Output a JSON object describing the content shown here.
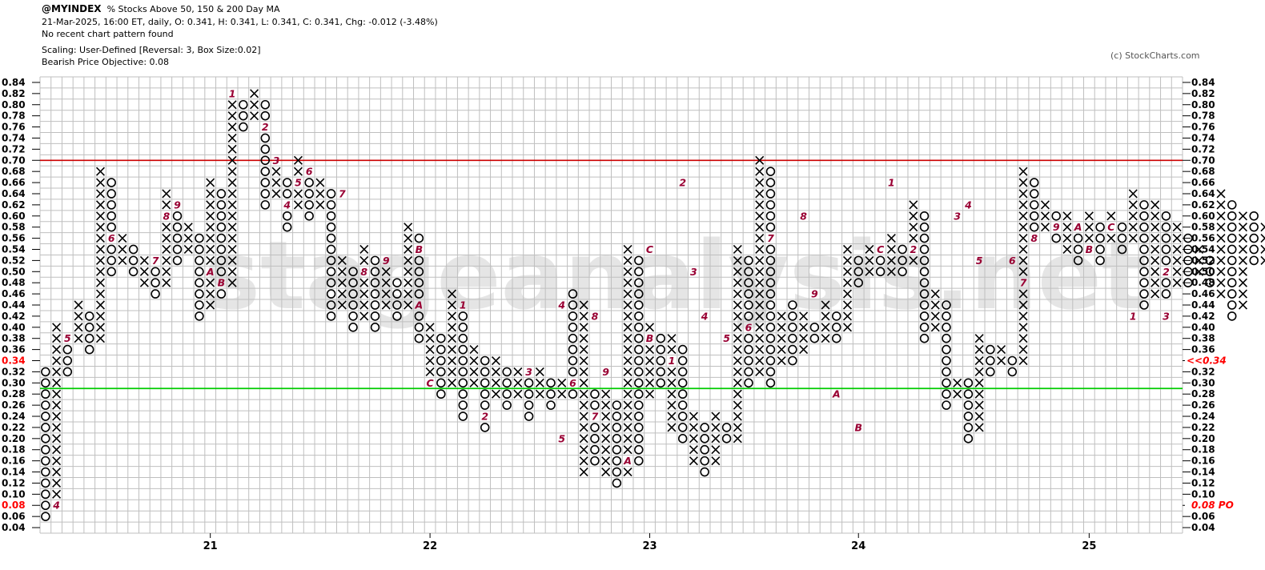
{
  "header": {
    "symbol": "@MYINDEX",
    "description": "% Stocks Above 50, 150 & 200 Day MA",
    "quote_line": "21-Mar-2025, 16:00 ET, daily, O: 0.341, H: 0.341, L: 0.341, C: 0.341, Chg: -0.012 (-3.48%)",
    "pattern_line": "No recent chart pattern found",
    "scaling_line": "Scaling: User-Defined [Reversal: 3, Box Size:0.02]",
    "objective_line": "Bearish Price Objective: 0.08"
  },
  "copyright": "(c) StockCharts.com",
  "watermark": "stageanalysis.net",
  "colors": {
    "grid": "#bfbfbf",
    "x_mark": "#000000",
    "o_mark": "#000000",
    "month_marker": "#990033",
    "resistance_line": "#cc0000",
    "support_line": "#00cc00",
    "price_label": "#ff0000",
    "watermark": "#d0d0d0"
  },
  "chart_data": {
    "type": "point-and-figure",
    "box_size": 0.02,
    "reversal": 3,
    "y_range": [
      0.04,
      0.84
    ],
    "y_ticks": [
      "0.04",
      "0.06",
      "0.08",
      "0.10",
      "0.12",
      "0.14",
      "0.16",
      "0.18",
      "0.20",
      "0.22",
      "0.24",
      "0.26",
      "0.28",
      "0.30",
      "0.32",
      "0.34",
      "0.36",
      "0.38",
      "0.40",
      "0.42",
      "0.44",
      "0.46",
      "0.48",
      "0.50",
      "0.52",
      "0.54",
      "0.56",
      "0.58",
      "0.60",
      "0.62",
      "0.64",
      "0.66",
      "0.68",
      "0.70",
      "0.72",
      "0.74",
      "0.76",
      "0.78",
      "0.80",
      "0.82",
      "0.84"
    ],
    "x_labels": [
      {
        "label": "21",
        "column": 15
      },
      {
        "label": "22",
        "column": 35
      },
      {
        "label": "23",
        "column": 55
      },
      {
        "label": "24",
        "column": 74
      },
      {
        "label": "25",
        "column": 95
      }
    ],
    "current_price_label": "0.34",
    "current_price_tag": "<<0.34",
    "objective_label": "0.08",
    "objective_tag": "0.08 PO",
    "resistance_level": 0.7,
    "support_level": 0.29,
    "columns": [
      {
        "t": "O",
        "hi": 0.32,
        "lo": 0.06
      },
      {
        "t": "X",
        "hi": 0.4,
        "lo": 0.08
      },
      {
        "t": "O",
        "hi": 0.36,
        "lo": 0.32
      },
      {
        "t": "X",
        "hi": 0.44,
        "lo": 0.38
      },
      {
        "t": "O",
        "hi": 0.42,
        "lo": 0.36
      },
      {
        "t": "X",
        "hi": 0.68,
        "lo": 0.38
      },
      {
        "t": "O",
        "hi": 0.66,
        "lo": 0.5
      },
      {
        "t": "X",
        "hi": 0.56,
        "lo": 0.52
      },
      {
        "t": "O",
        "hi": 0.54,
        "lo": 0.5
      },
      {
        "t": "X",
        "hi": 0.52,
        "lo": 0.48
      },
      {
        "t": "O",
        "hi": 0.5,
        "lo": 0.46
      },
      {
        "t": "X",
        "hi": 0.64,
        "lo": 0.48
      },
      {
        "t": "O",
        "hi": 0.62,
        "lo": 0.52
      },
      {
        "t": "X",
        "hi": 0.58,
        "lo": 0.54
      },
      {
        "t": "O",
        "hi": 0.56,
        "lo": 0.42
      },
      {
        "t": "X",
        "hi": 0.66,
        "lo": 0.44
      },
      {
        "t": "O",
        "hi": 0.64,
        "lo": 0.46
      },
      {
        "t": "X",
        "hi": 0.82,
        "lo": 0.48
      },
      {
        "t": "O",
        "hi": 0.8,
        "lo": 0.76
      },
      {
        "t": "X",
        "hi": 0.82,
        "lo": 0.78
      },
      {
        "t": "O",
        "hi": 0.8,
        "lo": 0.62
      },
      {
        "t": "X",
        "hi": 0.68,
        "lo": 0.64
      },
      {
        "t": "O",
        "hi": 0.66,
        "lo": 0.58
      },
      {
        "t": "X",
        "hi": 0.7,
        "lo": 0.62
      },
      {
        "t": "O",
        "hi": 0.68,
        "lo": 0.6
      },
      {
        "t": "X",
        "hi": 0.66,
        "lo": 0.62
      },
      {
        "t": "O",
        "hi": 0.64,
        "lo": 0.42
      },
      {
        "t": "X",
        "hi": 0.52,
        "lo": 0.44
      },
      {
        "t": "O",
        "hi": 0.5,
        "lo": 0.4
      },
      {
        "t": "X",
        "hi": 0.54,
        "lo": 0.42
      },
      {
        "t": "O",
        "hi": 0.52,
        "lo": 0.4
      },
      {
        "t": "X",
        "hi": 0.5,
        "lo": 0.44
      },
      {
        "t": "O",
        "hi": 0.48,
        "lo": 0.42
      },
      {
        "t": "X",
        "hi": 0.58,
        "lo": 0.44
      },
      {
        "t": "O",
        "hi": 0.56,
        "lo": 0.38
      },
      {
        "t": "X",
        "hi": 0.4,
        "lo": 0.3
      },
      {
        "t": "O",
        "hi": 0.38,
        "lo": 0.28
      },
      {
        "t": "X",
        "hi": 0.46,
        "lo": 0.3
      },
      {
        "t": "O",
        "hi": 0.44,
        "lo": 0.24
      },
      {
        "t": "X",
        "hi": 0.36,
        "lo": 0.3
      },
      {
        "t": "O",
        "hi": 0.34,
        "lo": 0.22
      },
      {
        "t": "X",
        "hi": 0.34,
        "lo": 0.28
      },
      {
        "t": "O",
        "hi": 0.32,
        "lo": 0.26
      },
      {
        "t": "X",
        "hi": 0.32,
        "lo": 0.28
      },
      {
        "t": "O",
        "hi": 0.32,
        "lo": 0.24
      },
      {
        "t": "X",
        "hi": 0.32,
        "lo": 0.28
      },
      {
        "t": "O",
        "hi": 0.3,
        "lo": 0.26
      },
      {
        "t": "X",
        "hi": 0.3,
        "lo": 0.28
      },
      {
        "t": "O",
        "hi": 0.46,
        "lo": 0.28
      },
      {
        "t": "X",
        "hi": 0.44,
        "lo": 0.14
      },
      {
        "t": "O",
        "hi": 0.28,
        "lo": 0.16
      },
      {
        "t": "X",
        "hi": 0.28,
        "lo": 0.14
      },
      {
        "t": "O",
        "hi": 0.26,
        "lo": 0.12
      },
      {
        "t": "X",
        "hi": 0.54,
        "lo": 0.14
      },
      {
        "t": "O",
        "hi": 0.52,
        "lo": 0.16
      },
      {
        "t": "X",
        "hi": 0.4,
        "lo": 0.28
      },
      {
        "t": "O",
        "hi": 0.38,
        "lo": 0.3
      },
      {
        "t": "X",
        "hi": 0.38,
        "lo": 0.22
      },
      {
        "t": "O",
        "hi": 0.36,
        "lo": 0.2
      },
      {
        "t": "X",
        "hi": 0.24,
        "lo": 0.16
      },
      {
        "t": "O",
        "hi": 0.22,
        "lo": 0.14
      },
      {
        "t": "X",
        "hi": 0.24,
        "lo": 0.16
      },
      {
        "t": "O",
        "hi": 0.22,
        "lo": 0.2
      },
      {
        "t": "X",
        "hi": 0.54,
        "lo": 0.2
      },
      {
        "t": "O",
        "hi": 0.52,
        "lo": 0.3
      },
      {
        "t": "X",
        "hi": 0.7,
        "lo": 0.32
      },
      {
        "t": "O",
        "hi": 0.68,
        "lo": 0.3
      },
      {
        "t": "X",
        "hi": 0.42,
        "lo": 0.34
      },
      {
        "t": "O",
        "hi": 0.44,
        "lo": 0.34
      },
      {
        "t": "X",
        "hi": 0.42,
        "lo": 0.36
      },
      {
        "t": "O",
        "hi": 0.4,
        "lo": 0.38
      },
      {
        "t": "X",
        "hi": 0.44,
        "lo": 0.38
      },
      {
        "t": "O",
        "hi": 0.42,
        "lo": 0.38
      },
      {
        "t": "X",
        "hi": 0.54,
        "lo": 0.4
      },
      {
        "t": "O",
        "hi": 0.52,
        "lo": 0.48
      },
      {
        "t": "X",
        "hi": 0.54,
        "lo": 0.5
      },
      {
        "t": "O",
        "hi": 0.52,
        "lo": 0.5
      },
      {
        "t": "X",
        "hi": 0.56,
        "lo": 0.5
      },
      {
        "t": "O",
        "hi": 0.54,
        "lo": 0.5
      },
      {
        "t": "X",
        "hi": 0.62,
        "lo": 0.52
      },
      {
        "t": "O",
        "hi": 0.6,
        "lo": 0.38
      },
      {
        "t": "X",
        "hi": 0.46,
        "lo": 0.4
      },
      {
        "t": "O",
        "hi": 0.44,
        "lo": 0.26
      },
      {
        "t": "X",
        "hi": 0.3,
        "lo": 0.28
      },
      {
        "t": "O",
        "hi": 0.3,
        "lo": 0.2
      },
      {
        "t": "X",
        "hi": 0.38,
        "lo": 0.22
      },
      {
        "t": "O",
        "hi": 0.36,
        "lo": 0.32
      },
      {
        "t": "X",
        "hi": 0.36,
        "lo": 0.34
      },
      {
        "t": "O",
        "hi": 0.34,
        "lo": 0.32
      },
      {
        "t": "X",
        "hi": 0.68,
        "lo": 0.34
      },
      {
        "t": "O",
        "hi": 0.66,
        "lo": 0.58
      },
      {
        "t": "X",
        "hi": 0.62,
        "lo": 0.58
      },
      {
        "t": "O",
        "hi": 0.6,
        "lo": 0.56
      },
      {
        "t": "X",
        "hi": 0.6,
        "lo": 0.54
      },
      {
        "t": "O",
        "hi": 0.58,
        "lo": 0.52
      },
      {
        "t": "X",
        "hi": 0.6,
        "lo": 0.54
      },
      {
        "t": "O",
        "hi": 0.58,
        "lo": 0.52
      },
      {
        "t": "X",
        "hi": 0.6,
        "lo": 0.56
      },
      {
        "t": "O",
        "hi": 0.58,
        "lo": 0.54
      },
      {
        "t": "X",
        "hi": 0.64,
        "lo": 0.56
      },
      {
        "t": "O",
        "hi": 0.62,
        "lo": 0.44
      },
      {
        "t": "X",
        "hi": 0.62,
        "lo": 0.46
      },
      {
        "t": "O",
        "hi": 0.6,
        "lo": 0.46
      },
      {
        "t": "X",
        "hi": 0.58,
        "lo": 0.48
      },
      {
        "t": "O",
        "hi": 0.56,
        "lo": 0.48
      },
      {
        "t": "X",
        "hi": 0.54,
        "lo": 0.5
      },
      {
        "t": "O",
        "hi": 0.52,
        "lo": 0.48
      },
      {
        "t": "X",
        "hi": 0.64,
        "lo": 0.46
      },
      {
        "t": "O",
        "hi": 0.62,
        "lo": 0.42
      },
      {
        "t": "X",
        "hi": 0.6,
        "lo": 0.44
      },
      {
        "t": "O",
        "hi": 0.6,
        "lo": 0.52
      },
      {
        "t": "X",
        "hi": 0.58,
        "lo": 0.52
      },
      {
        "t": "O",
        "hi": 0.6,
        "lo": 0.52
      },
      {
        "t": "X",
        "hi": 0.6,
        "lo": 0.54
      },
      {
        "t": "O",
        "hi": 0.58,
        "lo": 0.52
      },
      {
        "t": "X",
        "hi": 0.6,
        "lo": 0.54
      },
      {
        "t": "O",
        "hi": 0.58,
        "lo": 0.54
      },
      {
        "t": "X",
        "hi": 0.6,
        "lo": 0.56
      },
      {
        "t": "O",
        "hi": 0.58,
        "lo": 0.4
      },
      {
        "t": "X",
        "hi": 0.46,
        "lo": 0.42
      },
      {
        "t": "O",
        "hi": 0.44,
        "lo": 0.4
      },
      {
        "t": "X",
        "hi": 0.44,
        "lo": 0.4
      },
      {
        "t": "O",
        "hi": 0.42,
        "lo": 0.38
      },
      {
        "t": "X",
        "hi": 0.52,
        "lo": 0.4
      },
      {
        "t": "O",
        "hi": 0.5,
        "lo": 0.3
      },
      {
        "t": "X",
        "hi": 0.36,
        "lo": 0.32
      }
    ],
    "month_markers": [
      {
        "label": "4",
        "column": 1,
        "value": 0.08
      },
      {
        "label": "5",
        "column": 2,
        "value": 0.38
      },
      {
        "label": "6",
        "column": 6,
        "value": 0.56
      },
      {
        "label": "7",
        "column": 10,
        "value": 0.52
      },
      {
        "label": "8",
        "column": 11,
        "value": 0.6
      },
      {
        "label": "9",
        "column": 12,
        "value": 0.62
      },
      {
        "label": "A",
        "column": 15,
        "value": 0.5
      },
      {
        "label": "B",
        "column": 16,
        "value": 0.48
      },
      {
        "label": "1",
        "column": 17,
        "value": 0.82
      },
      {
        "label": "2",
        "column": 20,
        "value": 0.76
      },
      {
        "label": "3",
        "column": 21,
        "value": 0.7
      },
      {
        "label": "4",
        "column": 22,
        "value": 0.62
      },
      {
        "label": "5",
        "column": 23,
        "value": 0.66
      },
      {
        "label": "6",
        "column": 24,
        "value": 0.68
      },
      {
        "label": "7",
        "column": 27,
        "value": 0.64
      },
      {
        "label": "8",
        "column": 29,
        "value": 0.5
      },
      {
        "label": "9",
        "column": 31,
        "value": 0.52
      },
      {
        "label": "A",
        "column": 34,
        "value": 0.44
      },
      {
        "label": "B",
        "column": 34,
        "value": 0.54
      },
      {
        "label": "C",
        "column": 35,
        "value": 0.3
      },
      {
        "label": "1",
        "column": 38,
        "value": 0.44
      },
      {
        "label": "2",
        "column": 40,
        "value": 0.24
      },
      {
        "label": "3",
        "column": 44,
        "value": 0.32
      },
      {
        "label": "4",
        "column": 47,
        "value": 0.44
      },
      {
        "label": "5",
        "column": 47,
        "value": 0.2
      },
      {
        "label": "6",
        "column": 48,
        "value": 0.3
      },
      {
        "label": "7",
        "column": 50,
        "value": 0.24
      },
      {
        "label": "8",
        "column": 50,
        "value": 0.42
      },
      {
        "label": "9",
        "column": 51,
        "value": 0.32
      },
      {
        "label": "A",
        "column": 53,
        "value": 0.16
      },
      {
        "label": "B",
        "column": 55,
        "value": 0.38
      },
      {
        "label": "C",
        "column": 55,
        "value": 0.54
      },
      {
        "label": "1",
        "column": 57,
        "value": 0.34
      },
      {
        "label": "2",
        "column": 58,
        "value": 0.66
      },
      {
        "label": "3",
        "column": 59,
        "value": 0.5
      },
      {
        "label": "4",
        "column": 60,
        "value": 0.42
      },
      {
        "label": "5",
        "column": 62,
        "value": 0.38
      },
      {
        "label": "6",
        "column": 64,
        "value": 0.4
      },
      {
        "label": "7",
        "column": 66,
        "value": 0.56
      },
      {
        "label": "8",
        "column": 69,
        "value": 0.6
      },
      {
        "label": "9",
        "column": 70,
        "value": 0.46
      },
      {
        "label": "A",
        "column": 72,
        "value": 0.28
      },
      {
        "label": "B",
        "column": 74,
        "value": 0.22
      },
      {
        "label": "C",
        "column": 76,
        "value": 0.54
      },
      {
        "label": "1",
        "column": 77,
        "value": 0.66
      },
      {
        "label": "2",
        "column": 79,
        "value": 0.54
      },
      {
        "label": "3",
        "column": 83,
        "value": 0.6
      },
      {
        "label": "4",
        "column": 84,
        "value": 0.62
      },
      {
        "label": "5",
        "column": 85,
        "value": 0.52
      },
      {
        "label": "6",
        "column": 88,
        "value": 0.52
      },
      {
        "label": "7",
        "column": 89,
        "value": 0.48
      },
      {
        "label": "8",
        "column": 90,
        "value": 0.56
      },
      {
        "label": "9",
        "column": 92,
        "value": 0.58
      },
      {
        "label": "A",
        "column": 94,
        "value": 0.58
      },
      {
        "label": "B",
        "column": 95,
        "value": 0.54
      },
      {
        "label": "C",
        "column": 97,
        "value": 0.58
      },
      {
        "label": "1",
        "column": 99,
        "value": 0.42
      },
      {
        "label": "2",
        "column": 102,
        "value": 0.5
      },
      {
        "label": "3",
        "column": 102,
        "value": 0.42
      }
    ]
  }
}
